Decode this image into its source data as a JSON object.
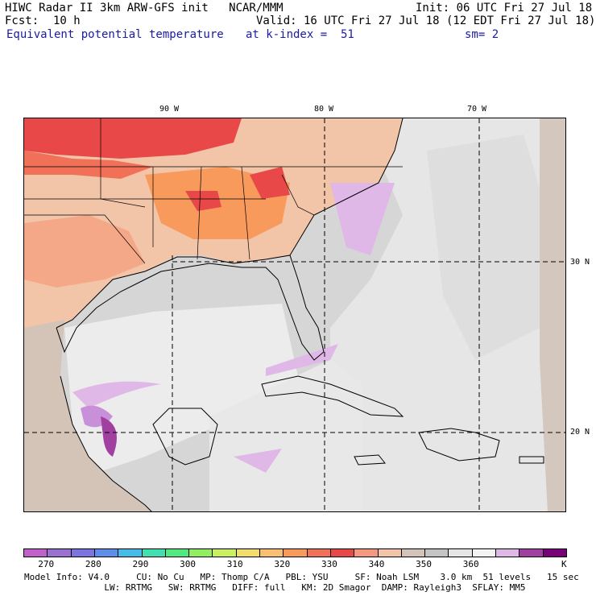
{
  "header": {
    "title": "HIWC Radar II 3km ARW-GFS init   NCAR/MMM",
    "init": "Init: 06 UTC Fri 27 Jul 18",
    "fcst_label": "Fcst:",
    "fcst_value": "10 h",
    "valid": "Valid: 16 UTC Fri 27 Jul 18 (12 EDT Fri 27 Jul 18)",
    "field": "Equivalent potential temperature",
    "level": "at k-index =  51",
    "smooth": "sm= 2"
  },
  "map": {
    "lon_labels": [
      "90 W",
      "80 W",
      "70 W"
    ],
    "lat_labels": [
      "30 N",
      "20 N"
    ]
  },
  "colorbar": {
    "colors": [
      "#c060c8",
      "#9a70d0",
      "#7e74e0",
      "#5f8ee8",
      "#46bce8",
      "#40e0b0",
      "#50ea80",
      "#90ee60",
      "#c8f060",
      "#f2dc6c",
      "#f8c070",
      "#f89a5c",
      "#f07058",
      "#e84848",
      "#f49880",
      "#f2c4a8",
      "#d4c4b8",
      "#c4c4c4",
      "#e6e6e6",
      "#f4f4f4",
      "#e0b8e8",
      "#a040a0",
      "#780078"
    ],
    "labels": [
      "270",
      "280",
      "290",
      "300",
      "310",
      "320",
      "330",
      "340",
      "350",
      "360"
    ],
    "unit": "K"
  },
  "footer": {
    "line1": "Model Info: V4.0     CU: No Cu   MP: Thomp C/A   PBL: YSU     SF: Noah LSM    3.0 km  51 levels   15 sec",
    "line2": "               LW: RRTMG   SW: RRTMG   DIFF: full   KM: 2D Smagor  DAMP: Rayleigh3  SFLAY: MM5"
  }
}
